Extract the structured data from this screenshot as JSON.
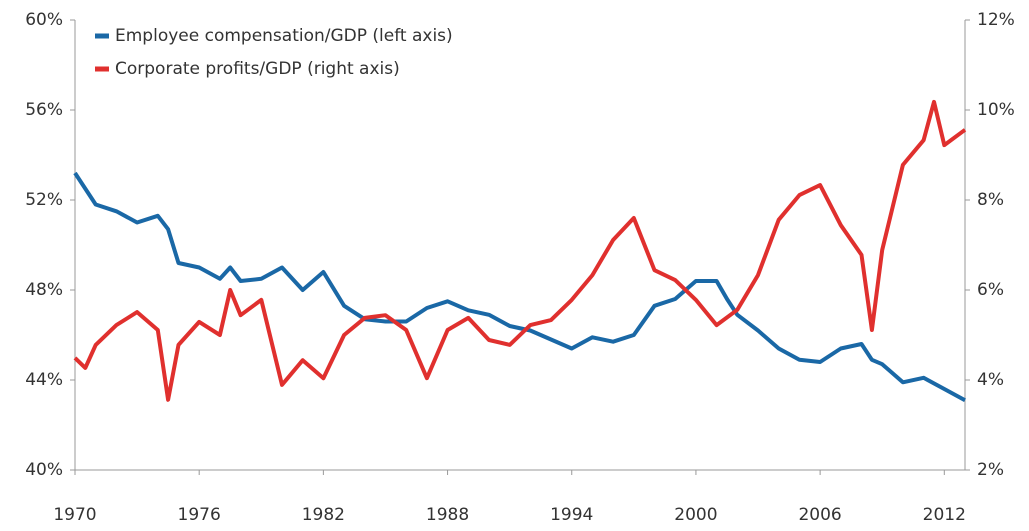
{
  "chart_data": {
    "type": "line",
    "series": [
      {
        "name": "Employee compensation/GDP (left axis)",
        "color": "#1a68a6",
        "axis": "y",
        "x": [
          1970,
          1971,
          1972,
          1973,
          1974,
          1974.5,
          1975,
          1976,
          1977,
          1977.5,
          1978,
          1979,
          1980,
          1981,
          1982,
          1983,
          1984,
          1985,
          1986,
          1987,
          1988,
          1989,
          1990,
          1991,
          1992,
          1993,
          1994,
          1995,
          1996,
          1997,
          1998,
          1999,
          2000,
          2001,
          2001.5,
          2002,
          2003,
          2004,
          2005,
          2006,
          2007,
          2008,
          2008.5,
          2009,
          2010,
          2011,
          2012,
          2013
        ],
        "values": [
          53.2,
          51.8,
          51.5,
          51.0,
          51.3,
          50.7,
          49.2,
          49.0,
          48.5,
          49.0,
          48.4,
          48.5,
          49.0,
          48.0,
          48.8,
          47.3,
          46.7,
          46.6,
          46.6,
          47.2,
          47.5,
          47.1,
          46.9,
          46.4,
          46.2,
          45.8,
          45.4,
          45.9,
          45.7,
          46.0,
          47.3,
          47.6,
          48.4,
          48.4,
          47.6,
          46.9,
          46.2,
          45.4,
          44.9,
          44.8,
          45.4,
          45.6,
          44.9,
          44.7,
          43.9,
          44.1,
          43.6,
          43.1
        ]
      },
      {
        "name": "Corporate profits/GDP (right axis)",
        "color": "#e0302e",
        "axis": "y2",
        "x": [
          1970,
          1970.5,
          1971,
          1972,
          1973,
          1974,
          1974.5,
          1975,
          1976,
          1977,
          1977.5,
          1978,
          1979,
          1980,
          1981,
          1982,
          1983,
          1984,
          1985,
          1986,
          1987,
          1988,
          1989,
          1990,
          1991,
          1992,
          1993,
          1994,
          1995,
          1996,
          1997,
          1998,
          1999,
          2000,
          2001,
          2002,
          2003,
          2004,
          2005,
          2006,
          2007,
          2008,
          2008.5,
          2009,
          2010,
          2011,
          2011.5,
          2012,
          2013
        ],
        "values": [
          4.49,
          4.27,
          4.78,
          5.22,
          5.51,
          5.11,
          3.56,
          4.78,
          5.29,
          5.0,
          6.0,
          5.44,
          5.78,
          3.89,
          4.44,
          4.04,
          5.0,
          5.38,
          5.44,
          5.11,
          4.04,
          5.11,
          5.38,
          4.89,
          4.78,
          5.22,
          5.33,
          5.78,
          6.33,
          7.11,
          7.6,
          6.44,
          6.22,
          5.78,
          5.22,
          5.56,
          6.33,
          7.56,
          8.11,
          8.33,
          7.44,
          6.78,
          5.11,
          6.89,
          8.78,
          9.33,
          10.18,
          9.22,
          9.56
        ]
      }
    ],
    "xlim": [
      1970,
      2013
    ],
    "xticks": [
      1970,
      1976,
      1982,
      1988,
      1994,
      2000,
      2006,
      2012
    ],
    "ylim": [
      40,
      60
    ],
    "yticks": [
      {
        "value": 40,
        "label": "40%"
      },
      {
        "value": 44,
        "label": "44%"
      },
      {
        "value": 48,
        "label": "48%"
      },
      {
        "value": 52,
        "label": "52%"
      },
      {
        "value": 56,
        "label": "56%"
      },
      {
        "value": 60,
        "label": "60%"
      }
    ],
    "y2lim": [
      2,
      12
    ],
    "y2ticks": [
      {
        "value": 2,
        "label": "2%"
      },
      {
        "value": 4,
        "label": "4%"
      },
      {
        "value": 6,
        "label": "6%"
      },
      {
        "value": 8,
        "label": "8%"
      },
      {
        "value": 10,
        "label": "10%"
      },
      {
        "value": 12,
        "label": "12%"
      }
    ],
    "legend": "top-left",
    "grid": false
  }
}
